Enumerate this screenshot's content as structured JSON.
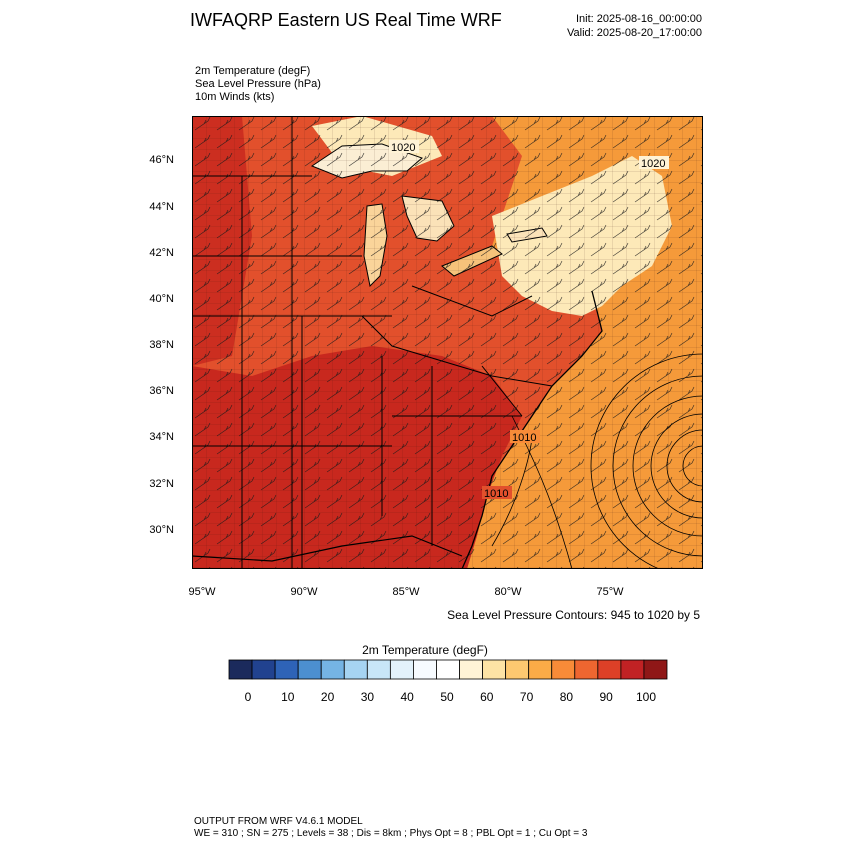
{
  "header": {
    "title": "IWFAQRP Eastern US Real Time WRF",
    "init": "Init: 2025-08-16_00:00:00",
    "valid": "Valid: 2025-08-20_17:00:00"
  },
  "fields": [
    "2m Temperature   (degF)",
    "Sea Level Pressure   (hPa)",
    "10m Winds   (kts)"
  ],
  "map": {
    "lat_labels": [
      "46°N",
      "44°N",
      "42°N",
      "40°N",
      "38°N",
      "36°N",
      "34°N",
      "32°N",
      "30°N"
    ],
    "lon_labels": [
      "95°W",
      "90°W",
      "85°W",
      "80°W",
      "75°W"
    ],
    "isobar_labels": [
      "1020",
      "1020",
      "1010",
      "1010"
    ],
    "colors": {
      "land_hot": "#c8281e",
      "land_warm": "#e2502c",
      "ocean": "#f59a3a",
      "cool_ne": "#fde9b8",
      "water_lakes": "#f0f0f0"
    }
  },
  "contour_note": "Sea Level Pressure Contours: 945 to 1020 by 5",
  "colorbar": {
    "title": "2m Temperature  (degF)",
    "colors": [
      "#1b2a5c",
      "#21428f",
      "#2e63b7",
      "#4c8fd0",
      "#75b4e4",
      "#a6d4f2",
      "#c8e6f8",
      "#e3f2fb",
      "#f7fbff",
      "#ffffff",
      "#fff3d6",
      "#fde3a5",
      "#fdc870",
      "#fbab47",
      "#f88b38",
      "#ee6630",
      "#dd4027",
      "#c12224",
      "#8f1717"
    ],
    "labels": [
      "0",
      "10",
      "20",
      "30",
      "40",
      "50",
      "60",
      "70",
      "80",
      "90",
      "100"
    ]
  },
  "footer": {
    "line1": "OUTPUT FROM WRF V4.6.1 MODEL",
    "line2": "WE = 310 ; SN = 275 ; Levels = 38 ; Dis = 8km ; Phys Opt = 8 ; PBL Opt = 1 ; Cu Opt = 3"
  }
}
